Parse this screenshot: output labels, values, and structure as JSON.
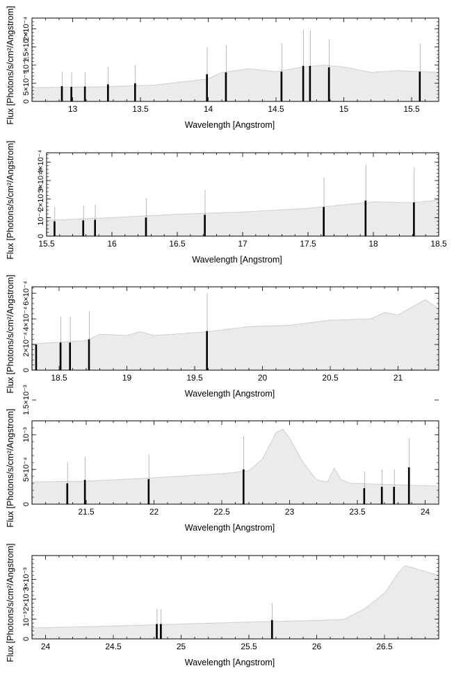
{
  "colors": {
    "spectrum": "#bdbdbd",
    "error_bar": "#9a9a9a",
    "marker": "#000000",
    "axis": "#000000"
  },
  "chart_data": [
    {
      "type": "area",
      "xlabel": "Wavelength [Angstrom]",
      "ylabel": "Flux [Photons/s/cm²/Angstrom]",
      "xlim": [
        12.7,
        15.7
      ],
      "ylim": [
        0,
        0.00023
      ],
      "x_ticks": [
        13,
        13.5,
        14,
        14.5,
        15,
        15.5
      ],
      "x_tick_labels": [
        "13",
        "13.5",
        "14",
        "14.5",
        "15",
        "15.5"
      ],
      "y_tick_labels": [
        "0",
        "5×10⁻⁵",
        "10⁻⁴",
        "1.5×10⁻⁴",
        "2×10⁻⁴"
      ],
      "y_ticks": [
        0,
        5e-05,
        0.0001,
        0.00015,
        0.0002
      ],
      "continuum": [
        [
          12.7,
          3.8e-05
        ],
        [
          13.2,
          4e-05
        ],
        [
          13.6,
          4.5e-05
        ],
        [
          14.0,
          6.2e-05
        ],
        [
          14.1,
          8e-05
        ],
        [
          14.3,
          9e-05
        ],
        [
          14.5,
          8.2e-05
        ],
        [
          14.7,
          9.5e-05
        ],
        [
          14.85,
          0.0001
        ],
        [
          15.0,
          9.5e-05
        ],
        [
          15.2,
          8e-05
        ],
        [
          15.4,
          8.5e-05
        ],
        [
          15.7,
          8e-05
        ]
      ],
      "features": [
        {
          "x": 12.92,
          "y": 4.2e-05,
          "err": 8.2e-05
        },
        {
          "x": 12.99,
          "y": 4e-05,
          "err": 8e-05
        },
        {
          "x": 13.09,
          "y": 4.1e-05,
          "err": 8e-05
        },
        {
          "x": 13.26,
          "y": 4.7e-05,
          "err": 9.5e-05
        },
        {
          "x": 13.46,
          "y": 5e-05,
          "err": 0.0001
        },
        {
          "x": 13.99,
          "y": 7.5e-05,
          "err": 0.00015
        },
        {
          "x": 14.13,
          "y": 8e-05,
          "err": 0.000155
        },
        {
          "x": 14.54,
          "y": 8.2e-05,
          "err": 0.00016
        },
        {
          "x": 14.7,
          "y": 9.8e-05,
          "err": 0.000198
        },
        {
          "x": 14.75,
          "y": 9.8e-05,
          "err": 0.000196
        },
        {
          "x": 14.89,
          "y": 9.4e-05,
          "err": 0.00017
        },
        {
          "x": 15.56,
          "y": 8.2e-05,
          "err": 0.00016
        }
      ]
    },
    {
      "type": "area",
      "xlabel": "Wavelength [Angstrom]",
      "ylabel": "Flux [Photons/s/cm²/Angstrom]",
      "xlim": [
        15.5,
        18.5
      ],
      "ylim": [
        0,
        0.00045
      ],
      "x_ticks": [
        15.5,
        16,
        16.5,
        17,
        17.5,
        18,
        18.5
      ],
      "x_tick_labels": [
        "15.5",
        "16",
        "16.5",
        "17",
        "17.5",
        "18",
        "18.5"
      ],
      "y_tick_labels": [
        "0",
        "10⁻⁴",
        "2×10⁻⁴",
        "3×10⁻⁴",
        "4×10⁻⁴"
      ],
      "y_ticks": [
        0,
        0.0001,
        0.0002,
        0.0003,
        0.0004
      ],
      "continuum": [
        [
          15.5,
          8.5e-05
        ],
        [
          16.0,
          0.0001
        ],
        [
          16.5,
          0.000118
        ],
        [
          17.0,
          0.00013
        ],
        [
          17.5,
          0.00015
        ],
        [
          18.0,
          0.000185
        ],
        [
          18.3,
          0.00018
        ],
        [
          18.5,
          0.000195
        ]
      ],
      "features": [
        {
          "x": 15.56,
          "y": 8e-05,
          "err": 0.000158
        },
        {
          "x": 15.78,
          "y": 8.5e-05,
          "err": 0.000165
        },
        {
          "x": 15.87,
          "y": 8.8e-05,
          "err": 0.00017
        },
        {
          "x": 16.26,
          "y": 0.0001,
          "err": 0.000205
        },
        {
          "x": 16.71,
          "y": 0.000115,
          "err": 0.00025
        },
        {
          "x": 17.62,
          "y": 0.000157,
          "err": 0.000318
        },
        {
          "x": 17.94,
          "y": 0.000192,
          "err": 0.000385
        },
        {
          "x": 18.31,
          "y": 0.000182,
          "err": 0.00037
        }
      ]
    },
    {
      "type": "area",
      "xlabel": "Wavelength [Angstrom]",
      "ylabel": "Flux [Photons/s/cm²/Angstrom]",
      "xlim": [
        18.3,
        21.3
      ],
      "ylim": [
        0,
        0.00065
      ],
      "x_ticks": [
        18.5,
        19,
        19.5,
        20,
        20.5,
        21
      ],
      "x_tick_labels": [
        "18.5",
        "19",
        "19.5",
        "20",
        "20.5",
        "21"
      ],
      "y_tick_labels": [
        "0",
        "2×10⁻⁴",
        "4×10⁻⁴",
        "6×10⁻⁴"
      ],
      "y_ticks": [
        0,
        0.0002,
        0.0004,
        0.0006
      ],
      "continuum": [
        [
          18.3,
          0.000205
        ],
        [
          18.7,
          0.00023
        ],
        [
          18.8,
          0.00028
        ],
        [
          19.0,
          0.00027
        ],
        [
          19.1,
          0.0003
        ],
        [
          19.2,
          0.00027
        ],
        [
          19.6,
          0.0003
        ],
        [
          19.9,
          0.00034
        ],
        [
          20.2,
          0.00035
        ],
        [
          20.5,
          0.00039
        ],
        [
          20.8,
          0.0004
        ],
        [
          20.9,
          0.00045
        ],
        [
          21.0,
          0.00043
        ],
        [
          21.2,
          0.00055
        ],
        [
          21.3,
          0.00048
        ]
      ],
      "features": [
        {
          "x": 18.33,
          "y": 0.0002,
          "err": 0.0002
        },
        {
          "x": 18.51,
          "y": 0.000215,
          "err": 0.00042
        },
        {
          "x": 18.58,
          "y": 0.000215,
          "err": 0.00042
        },
        {
          "x": 18.72,
          "y": 0.00024,
          "err": 0.00046
        },
        {
          "x": 19.59,
          "y": 0.000305,
          "err": 0.0006
        }
      ]
    },
    {
      "type": "area",
      "xlabel": "Wavelength [Angstrom]",
      "ylabel": "Flux [Photons/s/cm²/Angstrom]",
      "xlim": [
        21.1,
        24.1
      ],
      "ylim": [
        0,
        0.0012
      ],
      "x_ticks": [
        21.5,
        22,
        22.5,
        23,
        23.5,
        24
      ],
      "x_tick_labels": [
        "21.5",
        "22",
        "22.5",
        "23",
        "23.5",
        "24"
      ],
      "y_tick_labels": [
        "0",
        "5×10⁻⁴",
        "10⁻³",
        "1.5×10⁻³"
      ],
      "y_ticks": [
        0,
        0.0005,
        0.001,
        0.0015
      ],
      "continuum": [
        [
          21.1,
          0.00032
        ],
        [
          21.5,
          0.00033
        ],
        [
          22.0,
          0.00038
        ],
        [
          22.5,
          0.00044
        ],
        [
          22.7,
          0.00048
        ],
        [
          22.8,
          0.00065
        ],
        [
          22.9,
          0.00103
        ],
        [
          22.95,
          0.00108
        ],
        [
          23.0,
          0.00095
        ],
        [
          23.1,
          0.0006
        ],
        [
          23.2,
          0.00035
        ],
        [
          23.28,
          0.00032
        ],
        [
          23.33,
          0.00052
        ],
        [
          23.38,
          0.00035
        ],
        [
          23.45,
          0.0003
        ],
        [
          24.1,
          0.00026
        ]
      ],
      "features": [
        {
          "x": 21.36,
          "y": 0.0003,
          "err": 0.0006
        },
        {
          "x": 21.49,
          "y": 0.00035,
          "err": 0.00068
        },
        {
          "x": 21.96,
          "y": 0.00036,
          "err": 0.00072
        },
        {
          "x": 22.66,
          "y": 0.0005,
          "err": 0.00098
        },
        {
          "x": 23.55,
          "y": 0.00023,
          "err": 0.00047
        },
        {
          "x": 23.68,
          "y": 0.00025,
          "err": 0.0005
        },
        {
          "x": 23.77,
          "y": 0.00025,
          "err": 0.0005
        },
        {
          "x": 23.88,
          "y": 0.00053,
          "err": 0.00095
        }
      ]
    },
    {
      "type": "area",
      "xlabel": "Wavelength [Angstrom]",
      "ylabel": "Flux [Photons/s/cm²/Angstrom]",
      "xlim": [
        23.9,
        26.9
      ],
      "ylim": [
        0,
        0.0042
      ],
      "x_ticks": [
        24,
        24.5,
        25,
        25.5,
        26,
        26.5
      ],
      "x_tick_labels": [
        "24",
        "24.5",
        "25",
        "25.5",
        "26",
        "26.5"
      ],
      "y_tick_labels": [
        "0",
        "10⁻³",
        "2×10⁻³",
        "3×10⁻³"
      ],
      "y_ticks": [
        0,
        0.001,
        0.002,
        0.003
      ],
      "continuum": [
        [
          23.9,
          0.00055
        ],
        [
          24.5,
          0.00065
        ],
        [
          25.0,
          0.00075
        ],
        [
          25.5,
          0.00085
        ],
        [
          26.0,
          0.00093
        ],
        [
          26.2,
          0.00098
        ],
        [
          26.35,
          0.0015
        ],
        [
          26.5,
          0.0023
        ],
        [
          26.6,
          0.0033
        ],
        [
          26.65,
          0.0037
        ],
        [
          26.75,
          0.0035
        ],
        [
          26.9,
          0.0032
        ]
      ],
      "features": [
        {
          "x": 24.82,
          "y": 0.00075,
          "err": 0.0015
        },
        {
          "x": 24.85,
          "y": 0.00075,
          "err": 0.0015
        },
        {
          "x": 25.67,
          "y": 0.00095,
          "err": 0.0018
        }
      ]
    }
  ]
}
